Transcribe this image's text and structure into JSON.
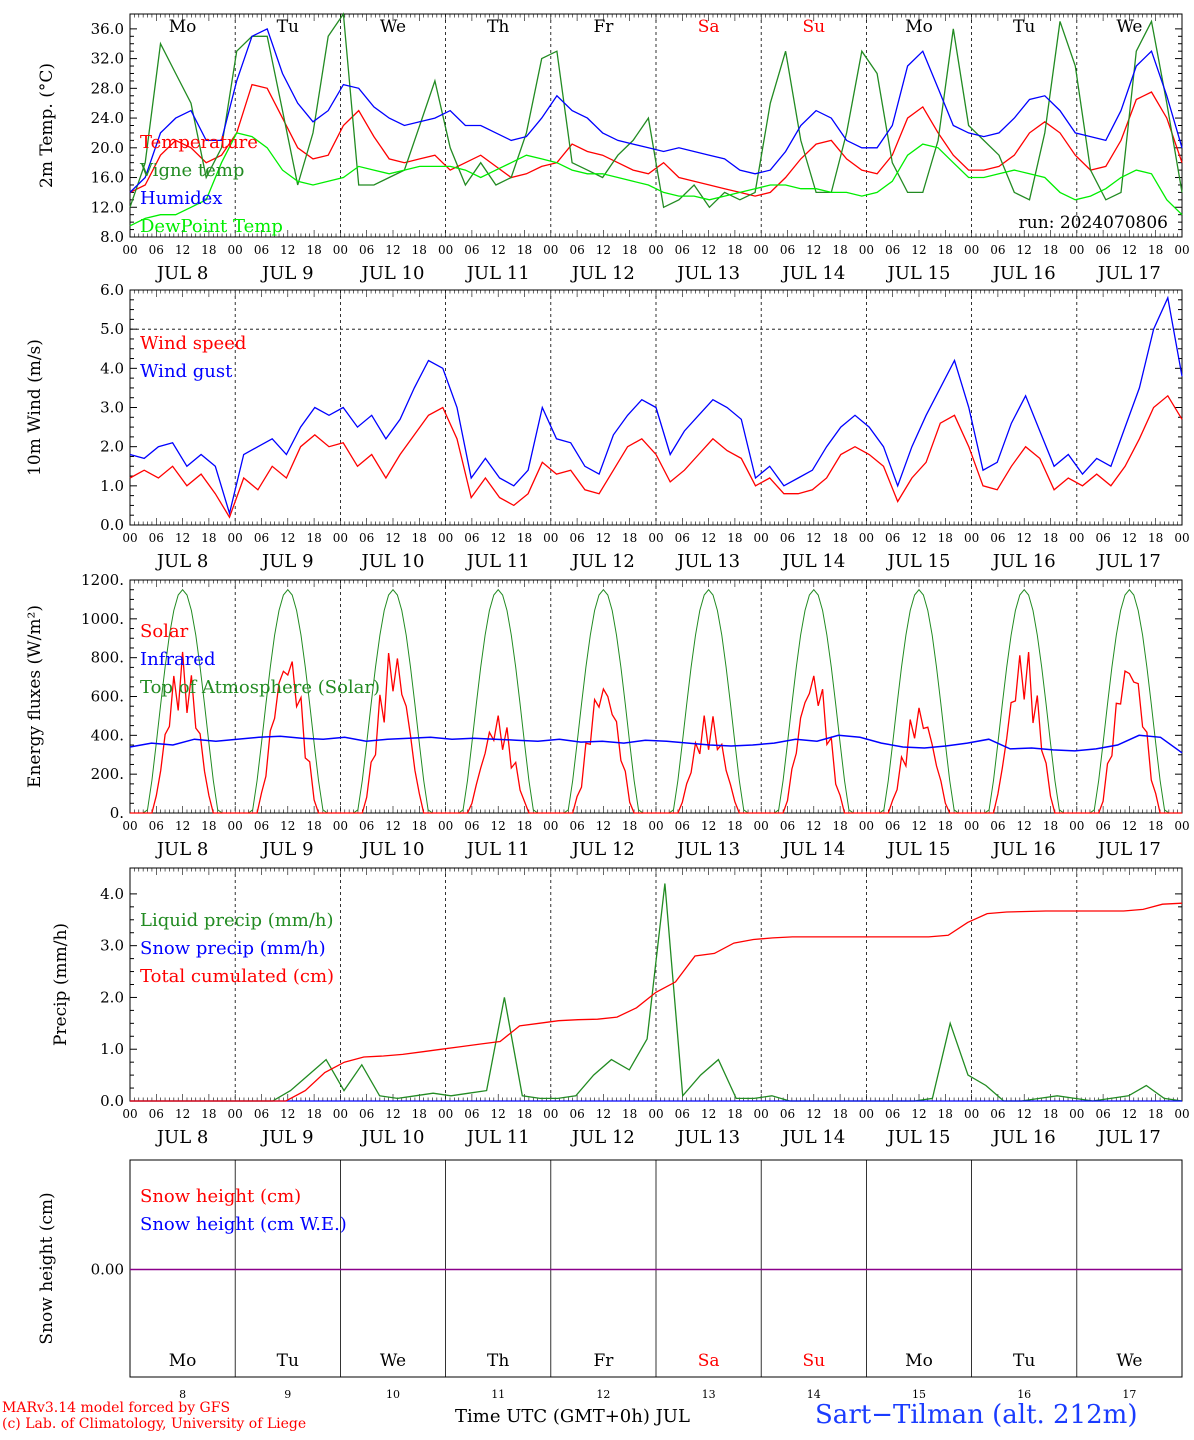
{
  "footer": {
    "model_line": "MARv3.14 model forced by GFS",
    "credit_line": "(c) Lab. of Climatology, University of Liege",
    "xaxis_label": "Time UTC (GMT+0h) JUL",
    "station": "Sart−Tilman (alt. 212m)"
  },
  "colors": {
    "red": "#ff0000",
    "green": "#228b22",
    "blue": "#0000ff",
    "lightgreen": "#00ee00",
    "purple": "#8b008b",
    "weekend": "#ff0000"
  },
  "chart_data": {
    "type": "line",
    "hour_ticks": [
      "00",
      "06",
      "12",
      "18"
    ],
    "dates": [
      "8",
      "9",
      "10",
      "11",
      "12",
      "13",
      "14",
      "15",
      "16",
      "17"
    ],
    "month": "JUL",
    "weekdays": [
      "Mo",
      "Tu",
      "We",
      "Th",
      "Fr",
      "Sa",
      "Su",
      "Mo",
      "Tu",
      "We"
    ],
    "weekend_days": [
      5,
      6
    ],
    "panels": [
      {
        "id": "temperature",
        "ylabel": "2m Temp. (°C)",
        "ylim": [
          8,
          38
        ],
        "yticks": [
          "8.0",
          "12.0",
          "16.0",
          "20.0",
          "24.0",
          "28.0",
          "32.0",
          "36.0"
        ],
        "run": "run: 2024070806",
        "series": [
          {
            "name": "Temperature",
            "color": "red",
            "values": [
              14,
              15,
              19,
              21,
              20,
              18,
              19,
              22,
              28.5,
              28,
              24,
              20,
              18.5,
              19,
              23,
              25,
              21.5,
              18.5,
              18,
              18.5,
              19,
              17,
              18,
              19,
              17.5,
              16,
              16.5,
              17.5,
              18,
              20.5,
              19.5,
              19,
              18,
              17,
              16.5,
              18,
              16,
              15.5,
              15,
              14.5,
              14,
              13.5,
              14,
              16,
              18.5,
              20.5,
              21,
              18.5,
              17,
              16.5,
              19,
              24,
              25.5,
              22,
              19,
              17,
              17,
              17.5,
              19,
              22,
              23.5,
              22,
              19,
              17,
              17.5,
              21,
              26.5,
              27.5,
              24,
              18
            ]
          },
          {
            "name": "Vigne temp",
            "color": "green",
            "values": [
              12,
              18,
              34,
              30,
              26,
              16,
              20,
              33,
              35,
              35,
              25,
              15,
              22,
              35,
              38,
              15,
              15,
              16,
              17,
              23,
              29,
              20,
              15,
              18,
              15,
              16,
              22,
              32,
              33,
              18,
              17,
              16,
              19,
              21,
              24,
              12,
              13,
              15,
              12,
              14,
              13,
              14,
              26,
              33,
              21,
              14,
              14,
              22,
              33,
              30,
              18,
              14,
              14,
              21,
              36,
              23,
              21,
              19,
              14,
              13,
              22,
              37,
              31,
              17,
              13,
              14,
              33,
              37,
              26,
              14
            ]
          },
          {
            "name": "Humidex",
            "color": "blue",
            "values": [
              14,
              16,
              22,
              24,
              25,
              21,
              21,
              29,
              35,
              36,
              30,
              26,
              23.5,
              25,
              28.5,
              28,
              25.5,
              24,
              23,
              23.5,
              24,
              25,
              23,
              23,
              22,
              21,
              21.5,
              24,
              27,
              25,
              24,
              22,
              21,
              20.5,
              20,
              19.5,
              20,
              19.5,
              19,
              18.5,
              17,
              16.5,
              17,
              19.5,
              23,
              25,
              24,
              21,
              20,
              20,
              23,
              31,
              33,
              28,
              23,
              22,
              21.5,
              22,
              24,
              26.5,
              27,
              25,
              22,
              21.5,
              21,
              25,
              31,
              33,
              27,
              20
            ]
          },
          {
            "name": "DewPoint Temp",
            "color": "lightgreen",
            "values": [
              9.5,
              10.5,
              11,
              11,
              12,
              13,
              18,
              22,
              21.5,
              20,
              17,
              15.5,
              15,
              15.5,
              16,
              17.5,
              17,
              16.5,
              17,
              17.5,
              17.5,
              17.5,
              17,
              16,
              17,
              18,
              19,
              18.5,
              18,
              17,
              16.5,
              16.5,
              16,
              15.5,
              15,
              14,
              13.5,
              13.5,
              13,
              13.5,
              14,
              14.5,
              15,
              15,
              14.5,
              14.5,
              14,
              14,
              13.5,
              14,
              15.5,
              19,
              20.5,
              20,
              18,
              16,
              16,
              16.5,
              17,
              16.5,
              16,
              14,
              13,
              13.5,
              14.5,
              16,
              17,
              16.5,
              13,
              11
            ]
          }
        ]
      },
      {
        "id": "wind",
        "ylabel": "10m Wind (m/s)",
        "ylim": [
          0,
          6
        ],
        "yticks": [
          "0.0",
          "1.0",
          "2.0",
          "3.0",
          "4.0",
          "5.0",
          "6.0"
        ],
        "dashed_reference": 5,
        "series": [
          {
            "name": "Wind speed",
            "color": "red",
            "values": [
              1.2,
              1.4,
              1.2,
              1.5,
              1.0,
              1.3,
              0.8,
              0.2,
              1.2,
              0.9,
              1.5,
              1.2,
              2.0,
              2.3,
              2.0,
              2.1,
              1.5,
              1.8,
              1.2,
              1.8,
              2.3,
              2.8,
              3.0,
              2.2,
              0.7,
              1.2,
              0.7,
              0.5,
              0.8,
              1.6,
              1.3,
              1.4,
              0.9,
              0.8,
              1.4,
              2.0,
              2.2,
              1.8,
              1.1,
              1.4,
              1.8,
              2.2,
              1.9,
              1.7,
              1.0,
              1.2,
              0.8,
              0.8,
              0.9,
              1.2,
              1.8,
              2.0,
              1.8,
              1.5,
              0.6,
              1.2,
              1.6,
              2.6,
              2.8,
              2.0,
              1.0,
              0.9,
              1.5,
              2.0,
              1.7,
              0.9,
              1.2,
              1.0,
              1.3,
              1.0,
              1.5,
              2.2,
              3.0,
              3.3,
              2.7
            ]
          },
          {
            "name": "Wind gust",
            "color": "blue",
            "values": [
              1.8,
              1.7,
              2.0,
              2.1,
              1.5,
              1.8,
              1.5,
              0.3,
              1.8,
              2.0,
              2.2,
              1.8,
              2.5,
              3.0,
              2.8,
              3.0,
              2.5,
              2.8,
              2.2,
              2.7,
              3.5,
              4.2,
              4.0,
              3.0,
              1.2,
              1.7,
              1.2,
              1.0,
              1.4,
              3.0,
              2.2,
              2.1,
              1.5,
              1.3,
              2.3,
              2.8,
              3.2,
              3.0,
              1.8,
              2.4,
              2.8,
              3.2,
              3.0,
              2.7,
              1.2,
              1.5,
              1.0,
              1.2,
              1.4,
              2.0,
              2.5,
              2.8,
              2.5,
              2.0,
              1.0,
              2.0,
              2.8,
              3.5,
              4.2,
              3.0,
              1.4,
              1.6,
              2.6,
              3.3,
              2.4,
              1.5,
              1.8,
              1.3,
              1.7,
              1.5,
              2.5,
              3.5,
              5.0,
              5.8,
              3.8
            ]
          }
        ]
      },
      {
        "id": "energy",
        "ylabel": "Energy fluxes (W/m²)",
        "ylim": [
          0,
          1200
        ],
        "yticks": [
          "0.",
          "200.",
          "400.",
          "600.",
          "800.",
          "1000.",
          "1200."
        ],
        "series": [
          {
            "name": "Solar",
            "color": "red",
            "peaks": [
              830,
              850,
              860,
              510,
              700,
              520,
              750,
              560,
              860,
              820
            ]
          },
          {
            "name": "Infrared",
            "color": "blue",
            "values": [
              340,
              360,
              350,
              380,
              370,
              380,
              390,
              395,
              385,
              380,
              390,
              370,
              380,
              385,
              390,
              380,
              385,
              380,
              375,
              370,
              380,
              365,
              370,
              360,
              375,
              370,
              360,
              350,
              345,
              350,
              360,
              380,
              370,
              400,
              390,
              360,
              340,
              335,
              345,
              360,
              380,
              330,
              335,
              325,
              320,
              330,
              350,
              400,
              390,
              310
            ]
          },
          {
            "name": "Top of Atmosphere (Solar)",
            "color": "green",
            "peak": 1150
          }
        ]
      },
      {
        "id": "precip",
        "ylabel": "Precip (mm/h)",
        "ylim": [
          0,
          4.5
        ],
        "yticks": [
          "0.0",
          "1.0",
          "2.0",
          "3.0",
          "4.0"
        ],
        "series": [
          {
            "name": "Liquid precip (mm/h)",
            "color": "green",
            "values": [
              0,
              0,
              0,
              0,
              0,
              0,
              0,
              0,
              0,
              0.2,
              0.5,
              0.8,
              0.2,
              0.7,
              0.1,
              0.05,
              0.1,
              0.15,
              0.1,
              0.15,
              0.2,
              2.0,
              0.1,
              0.05,
              0.05,
              0.1,
              0.5,
              0.8,
              0.6,
              1.2,
              4.2,
              0.1,
              0.5,
              0.8,
              0.05,
              0.05,
              0.1,
              0,
              0,
              0,
              0,
              0,
              0,
              0,
              0,
              0.05,
              1.5,
              0.5,
              0.3,
              0,
              0,
              0.05,
              0.1,
              0.05,
              0,
              0.05,
              0.1,
              0.3,
              0.05,
              0
            ]
          },
          {
            "name": "Snow precip (mm/h)",
            "color": "blue",
            "values": [
              0
            ]
          },
          {
            "name": "Total cumulated (cm)",
            "color": "red",
            "values": [
              0,
              0,
              0,
              0,
              0,
              0,
              0,
              0,
              0,
              0.2,
              0.55,
              0.75,
              0.85,
              0.87,
              0.9,
              0.95,
              1.0,
              1.05,
              1.1,
              1.15,
              1.45,
              1.5,
              1.55,
              1.57,
              1.58,
              1.62,
              1.8,
              2.1,
              2.3,
              2.8,
              2.85,
              3.05,
              3.12,
              3.15,
              3.17,
              3.17,
              3.17,
              3.17,
              3.17,
              3.17,
              3.17,
              3.17,
              3.2,
              3.45,
              3.62,
              3.65,
              3.66,
              3.67,
              3.67,
              3.67,
              3.67,
              3.67,
              3.7,
              3.8,
              3.82
            ]
          }
        ]
      },
      {
        "id": "snow",
        "ylabel": "Snow height (cm)",
        "ytick": "0.00",
        "series": [
          {
            "name": "Snow height (cm)",
            "color": "red",
            "values": [
              0
            ]
          },
          {
            "name": "Snow height (cm W.E.)",
            "color": "blue",
            "values": [
              0
            ]
          }
        ]
      }
    ]
  }
}
